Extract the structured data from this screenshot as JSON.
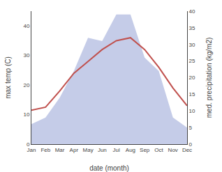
{
  "chart_data": {
    "type": "line",
    "categories": [
      "Jan",
      "Feb",
      "Mar",
      "Apr",
      "May",
      "Jun",
      "Jul",
      "Aug",
      "Sep",
      "Oct",
      "Nov",
      "Dec"
    ],
    "series": [
      {
        "type": "area",
        "axis": "y2",
        "color": "#c5cce8",
        "values": [
          6,
          8,
          14,
          22,
          32,
          31,
          39,
          39,
          26,
          22,
          8,
          5
        ]
      },
      {
        "type": "line",
        "axis": "y",
        "color": "#c0504d",
        "values": [
          11.5,
          12.5,
          18,
          24,
          28,
          32,
          35,
          36,
          32,
          26,
          19,
          13
        ]
      }
    ],
    "xlabel": "date (month)",
    "ylabel": "max temp (C)",
    "y2label": "med. precipitation (kg/m2)",
    "ylim": [
      0,
      45
    ],
    "yticks": [
      0,
      10,
      20,
      30,
      40
    ],
    "y2lim": [
      0,
      40
    ],
    "y2ticks": [
      0,
      5,
      10,
      15,
      20,
      25,
      30,
      35,
      40
    ],
    "grid": false
  }
}
